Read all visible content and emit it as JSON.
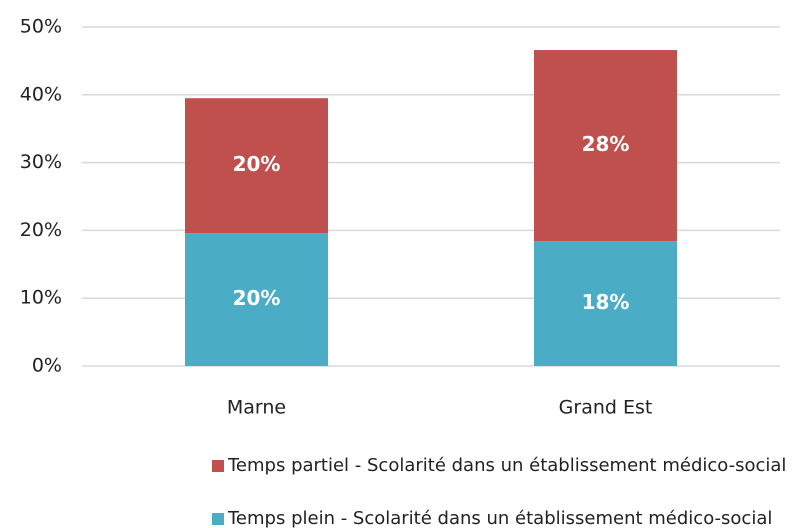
{
  "chart_data": {
    "type": "stacked_bar",
    "categories": [
      "Marne",
      "Grand Est"
    ],
    "series": [
      {
        "name": "Temps plein - Scolarité dans un établissement médico-social",
        "color": "#4bacc6",
        "values": [
          19.6,
          18.4
        ],
        "value_labels": [
          "20%",
          "18%"
        ]
      },
      {
        "name": "Temps partiel  - Scolarité dans un établissement médico-social",
        "color": "#c0504d",
        "values": [
          19.9,
          28.2
        ],
        "value_labels": [
          "20%",
          "28%"
        ]
      }
    ],
    "ylim": [
      0,
      50
    ],
    "yticks": [
      {
        "value": 0,
        "label": "0%"
      },
      {
        "value": 10,
        "label": "10%"
      },
      {
        "value": 20,
        "label": "20%"
      },
      {
        "value": 30,
        "label": "30%"
      },
      {
        "value": 40,
        "label": "40%"
      },
      {
        "value": 50,
        "label": "50%"
      }
    ],
    "grid": true
  }
}
